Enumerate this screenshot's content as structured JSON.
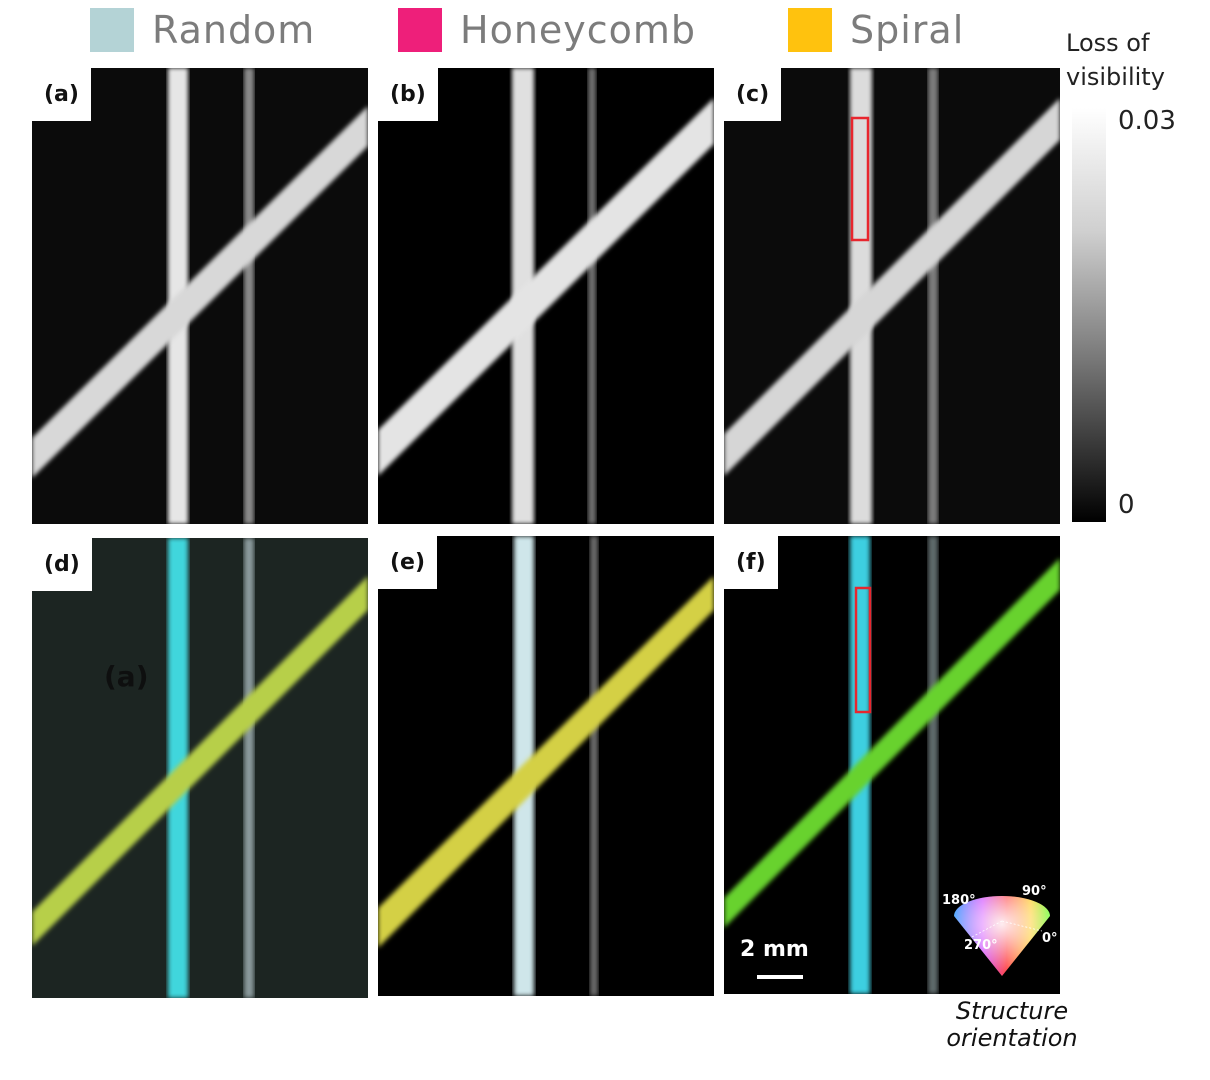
{
  "legend": [
    {
      "label": "Random",
      "color": "#b4d3d6"
    },
    {
      "label": "Honeycomb",
      "color": "#ee1f7a"
    },
    {
      "label": "Spiral",
      "color": "#ffc20e"
    }
  ],
  "panels": [
    {
      "label": "(a)",
      "kind": "grayscale"
    },
    {
      "label": "(b)",
      "kind": "grayscale"
    },
    {
      "label": "(c)",
      "kind": "grayscale",
      "highlight_box": true
    },
    {
      "label": "(d)",
      "kind": "color"
    },
    {
      "label": "(e)",
      "kind": "color"
    },
    {
      "label": "(f)",
      "kind": "color",
      "highlight_box": true
    }
  ],
  "stray_label": "(a)",
  "colorbar": {
    "title_line1": "Loss of",
    "title_line2": "visibility",
    "max_label": "0.03",
    "min_label": "0"
  },
  "scale_bar": {
    "label": "2 mm"
  },
  "orientation_wheel": {
    "label_180": "180°",
    "label_90": "90°",
    "label_270": "270°",
    "label_0": "0°"
  },
  "orientation_caption": {
    "line1": "Structure",
    "line2": "orientation"
  },
  "highlight_color": "#e8262e"
}
